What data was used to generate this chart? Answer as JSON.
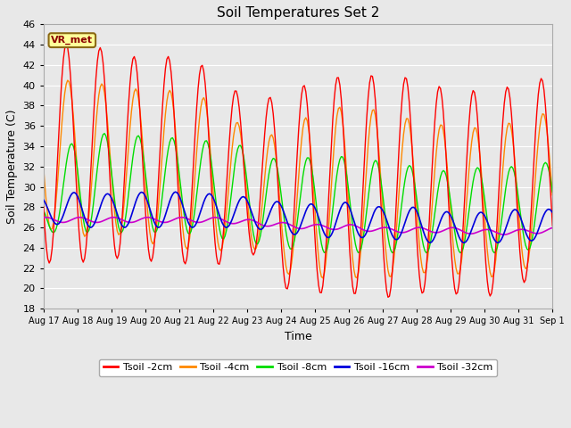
{
  "title": "Soil Temperatures Set 2",
  "xlabel": "Time",
  "ylabel": "Soil Temperature (C)",
  "ylim": [
    18,
    46
  ],
  "yticks": [
    18,
    20,
    22,
    24,
    26,
    28,
    30,
    32,
    34,
    36,
    38,
    40,
    42,
    44,
    46
  ],
  "bg_color": "#e8e8e8",
  "grid_color": "white",
  "legend_label": "VR_met",
  "series_colors": {
    "Tsoil -2cm": "#ff0000",
    "Tsoil -4cm": "#ff8800",
    "Tsoil -8cm": "#00dd00",
    "Tsoil -16cm": "#0000dd",
    "Tsoil -32cm": "#cc00cc"
  },
  "x_tick_labels": [
    "Aug 17",
    "Aug 18",
    "Aug 19",
    "Aug 20",
    "Aug 21",
    "Aug 22",
    "Aug 23",
    "Aug 24",
    "Aug 25",
    "Aug 26",
    "Aug 27",
    "Aug 28",
    "Aug 29",
    "Aug 30",
    "Aug 31",
    "Sep 1"
  ],
  "n_points": 744
}
